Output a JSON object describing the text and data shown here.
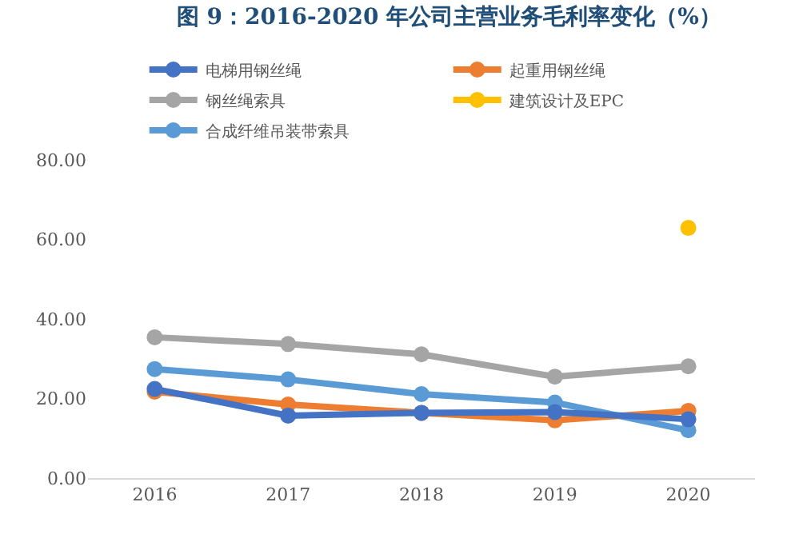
{
  "chart_data": {
    "type": "line",
    "title": "图 9：2016-2020 年公司主营业务毛利率变化（%）",
    "categories": [
      "2016",
      "2017",
      "2018",
      "2019",
      "2020"
    ],
    "series": [
      {
        "name": "电梯用钢丝绳",
        "color": "#4472c4",
        "values": [
          22.4,
          15.7,
          16.4,
          16.6,
          14.8
        ]
      },
      {
        "name": "起重用钢丝绳",
        "color": "#ed7d31",
        "values": [
          21.7,
          18.5,
          16.4,
          14.5,
          16.9
        ]
      },
      {
        "name": "钢丝绳索具",
        "color": "#a5a5a5",
        "values": [
          35.4,
          33.7,
          31.1,
          25.5,
          28.1
        ]
      },
      {
        "name": "建筑设计及EPC",
        "color": "#ffc000",
        "values": [
          null,
          null,
          null,
          null,
          62.9
        ]
      },
      {
        "name": "合成纤维吊装带索具",
        "color": "#5b9bd5",
        "values": [
          27.4,
          24.8,
          21.1,
          19.0,
          12.0
        ]
      }
    ],
    "ylim": [
      0,
      80
    ],
    "yticks": [
      {
        "value": 0,
        "label": "0.00"
      },
      {
        "value": 20,
        "label": "20.00"
      },
      {
        "value": 40,
        "label": "40.00"
      },
      {
        "value": 60,
        "label": "60.00"
      },
      {
        "value": 80,
        "label": "80.00"
      }
    ],
    "grid": false,
    "legend": "top",
    "marker": "circle",
    "line_style": "solid"
  }
}
